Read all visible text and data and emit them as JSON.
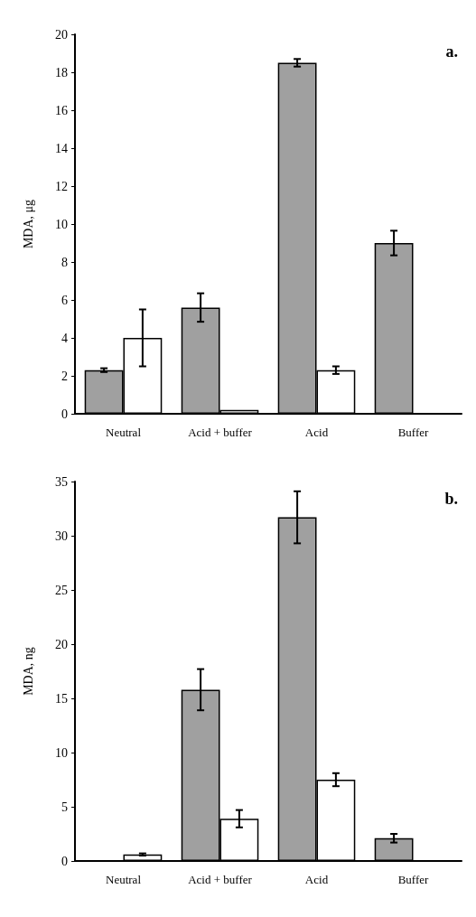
{
  "chart_data": [
    {
      "type": "bar",
      "categories": [
        "Neutral",
        "Acid + buffer",
        "Acid",
        "Buffer"
      ],
      "ylabel": "MDA, μg",
      "ylim": [
        0,
        20
      ],
      "yticks": [
        0,
        2,
        4,
        6,
        8,
        10,
        12,
        14,
        16,
        18,
        20
      ],
      "annotations": [
        "a."
      ],
      "grid": false,
      "series": [
        {
          "color": "#a0a0a0",
          "values": [
            2.3,
            5.6,
            18.5,
            9.0
          ],
          "errors": [
            0.1,
            0.75,
            0.2,
            0.65
          ]
        },
        {
          "color": "#ffffff",
          "values": [
            4.0,
            0.2,
            2.3,
            null
          ],
          "errors": [
            1.5,
            null,
            0.2,
            null
          ]
        }
      ]
    },
    {
      "type": "bar",
      "categories": [
        "Neutral",
        "Acid + buffer",
        "Acid",
        "Buffer"
      ],
      "ylabel": "MDA, ng",
      "ylim": [
        0,
        35
      ],
      "yticks": [
        0,
        5,
        10,
        15,
        20,
        25,
        30,
        35
      ],
      "annotations": [
        "b."
      ],
      "grid": false,
      "series": [
        {
          "color": "#a0a0a0",
          "values": [
            null,
            15.8,
            31.7,
            2.1
          ],
          "errors": [
            null,
            1.9,
            2.4,
            0.4
          ]
        },
        {
          "color": "#ffffff",
          "values": [
            0.6,
            3.9,
            7.5,
            null
          ],
          "errors": [
            0.1,
            0.8,
            0.6,
            null
          ]
        }
      ]
    }
  ]
}
